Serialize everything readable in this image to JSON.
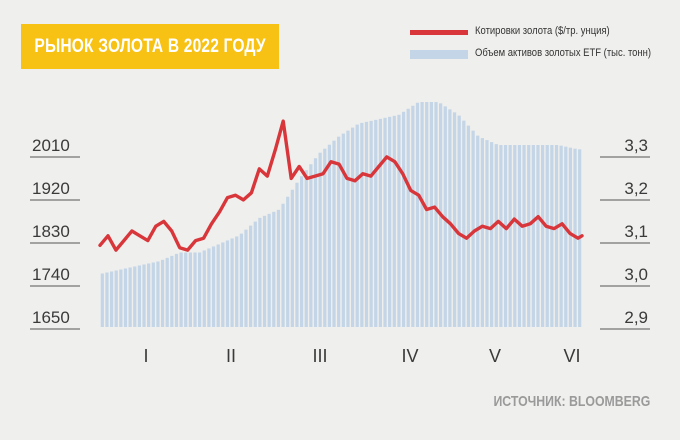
{
  "title": "РЫНОК ЗОЛОТА В 2022 ГОДУ",
  "legend": {
    "gold_price": "Котировки золота ($/тр. унция)",
    "etf_holdings": "Объем активов золотых ETF (тыс. тонн)"
  },
  "source": "ИСТОЧНИК: BLOOMBERG",
  "colors": {
    "title_bg": "#f7c213",
    "line": "#d8363a",
    "bars": "#c3d5e6",
    "background": "#efefed"
  },
  "chart_data": {
    "type": "line",
    "categories": [
      "I",
      "II",
      "III",
      "IV",
      "V",
      "VI"
    ],
    "y_left": {
      "ticks": [
        2010,
        1920,
        1830,
        1740,
        1650
      ]
    },
    "y_right": {
      "ticks": [
        "3,3",
        "3,2",
        "3,1",
        "3,0",
        "2,9"
      ]
    },
    "x_range": [
      0,
      121
    ],
    "series": [
      {
        "name": "Котировки золота ($/тр. унция)",
        "type": "line",
        "axis": "left",
        "x": [
          0,
          2,
          4,
          6,
          8,
          10,
          12,
          14,
          16,
          18,
          20,
          22,
          24,
          26,
          28,
          30,
          32,
          34,
          36,
          38,
          40,
          42,
          44,
          46,
          48,
          50,
          52,
          54,
          56,
          58,
          60,
          62,
          64,
          66,
          68,
          70,
          72,
          74,
          76,
          78,
          80,
          82,
          84,
          86,
          88,
          90,
          92,
          94,
          96,
          98,
          100,
          102,
          104,
          106,
          108,
          110,
          112,
          114,
          116,
          118,
          120,
          121
        ],
        "values": [
          1800,
          1820,
          1790,
          1810,
          1830,
          1820,
          1810,
          1840,
          1850,
          1830,
          1795,
          1790,
          1810,
          1815,
          1845,
          1870,
          1900,
          1905,
          1895,
          1910,
          1960,
          1945,
          2000,
          2060,
          1940,
          1965,
          1940,
          1945,
          1950,
          1975,
          1970,
          1940,
          1935,
          1950,
          1945,
          1965,
          1985,
          1975,
          1950,
          1915,
          1905,
          1875,
          1880,
          1860,
          1845,
          1825,
          1815,
          1830,
          1840,
          1835,
          1850,
          1835,
          1855,
          1840,
          1845,
          1860,
          1840,
          1835,
          1845,
          1825,
          1815,
          1820
        ]
      },
      {
        "name": "Объем активов золотых ETF (тыс. тонн)",
        "type": "bar",
        "axis": "right",
        "x": [
          0,
          5,
          10,
          15,
          20,
          25,
          30,
          35,
          40,
          45,
          50,
          55,
          60,
          65,
          70,
          75,
          80,
          85,
          90,
          95,
          100,
          105,
          110,
          115,
          120
        ],
        "values": [
          3.0,
          3.01,
          3.02,
          3.03,
          3.05,
          3.05,
          3.07,
          3.09,
          3.13,
          3.15,
          3.22,
          3.28,
          3.32,
          3.35,
          3.36,
          3.37,
          3.4,
          3.4,
          3.37,
          3.32,
          3.3,
          3.3,
          3.3,
          3.3,
          3.29
        ]
      }
    ],
    "grid": false,
    "legend_position": "top-right"
  }
}
